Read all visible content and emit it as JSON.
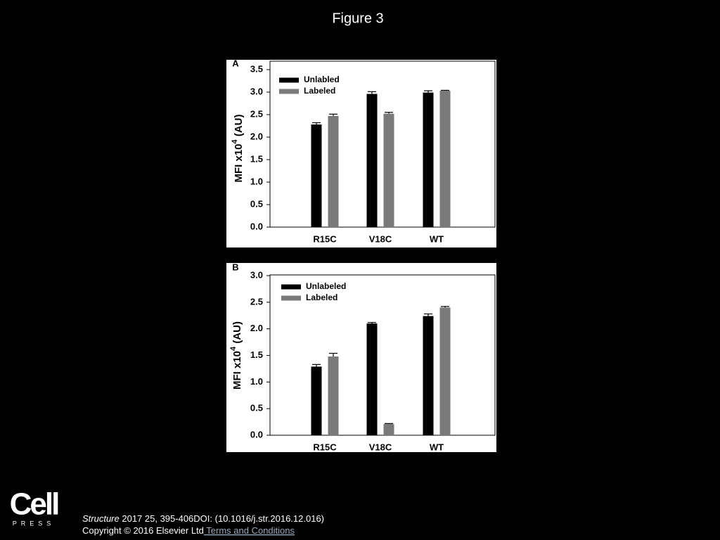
{
  "header": {
    "title": "Figure 3"
  },
  "chart_data": [
    {
      "type": "bar",
      "panel": "A",
      "ylabel": [
        "MFI x10",
        "4",
        " (AU)"
      ],
      "categories": [
        "R15C",
        "V18C",
        "WT"
      ],
      "series": [
        {
          "name": "Unlabled",
          "color": "#000000",
          "values": [
            2.28,
            2.96,
            2.99
          ],
          "errors": [
            0.04,
            0.05,
            0.04
          ]
        },
        {
          "name": "Labeled",
          "color": "#7a7a7a",
          "values": [
            2.47,
            2.52,
            3.03
          ],
          "errors": [
            0.04,
            0.03,
            0.01
          ]
        }
      ],
      "ylim": [
        0,
        3.5
      ],
      "yticks": [
        {
          "value": 0,
          "label": "0.0"
        },
        0.5,
        {
          "value": 1,
          "label": "1.0"
        },
        1.5,
        {
          "value": 2,
          "label": "2.0"
        },
        2.5,
        {
          "value": 3,
          "label": "3.0"
        },
        3.5
      ],
      "legend": "upper-left"
    },
    {
      "type": "bar",
      "panel": "B",
      "ylabel": [
        "MFI x10",
        "4",
        " (AU)"
      ],
      "categories": [
        "R15C",
        "V18C",
        "WT"
      ],
      "series": [
        {
          "name": "Unlabeled",
          "color": "#000000",
          "values": [
            1.29,
            2.1,
            2.24
          ],
          "errors": [
            0.04,
            0.02,
            0.04
          ]
        },
        {
          "name": "Labeled",
          "color": "#7a7a7a",
          "values": [
            1.48,
            0.21,
            2.4
          ],
          "errors": [
            0.06,
            0.01,
            0.02
          ]
        }
      ],
      "ylim": [
        0,
        3
      ],
      "yticks": [
        {
          "value": 0,
          "label": "0.0"
        },
        0.5,
        {
          "value": 1,
          "label": "1.0"
        },
        1.5,
        {
          "value": 2,
          "label": "2.0"
        },
        2.5,
        {
          "value": 3,
          "label": "3.0"
        }
      ],
      "legend": "upper-left"
    }
  ],
  "footer": {
    "logo": {
      "top": "Cell",
      "bottom": "PRESS"
    },
    "journal": "Structure",
    "citation": " 2017 25, 395-406DOI: (10.1016/j.str.2016.12.016)",
    "copyright": "Copyright © 2016 Elsevier Ltd",
    "link": " Terms and Conditions"
  }
}
